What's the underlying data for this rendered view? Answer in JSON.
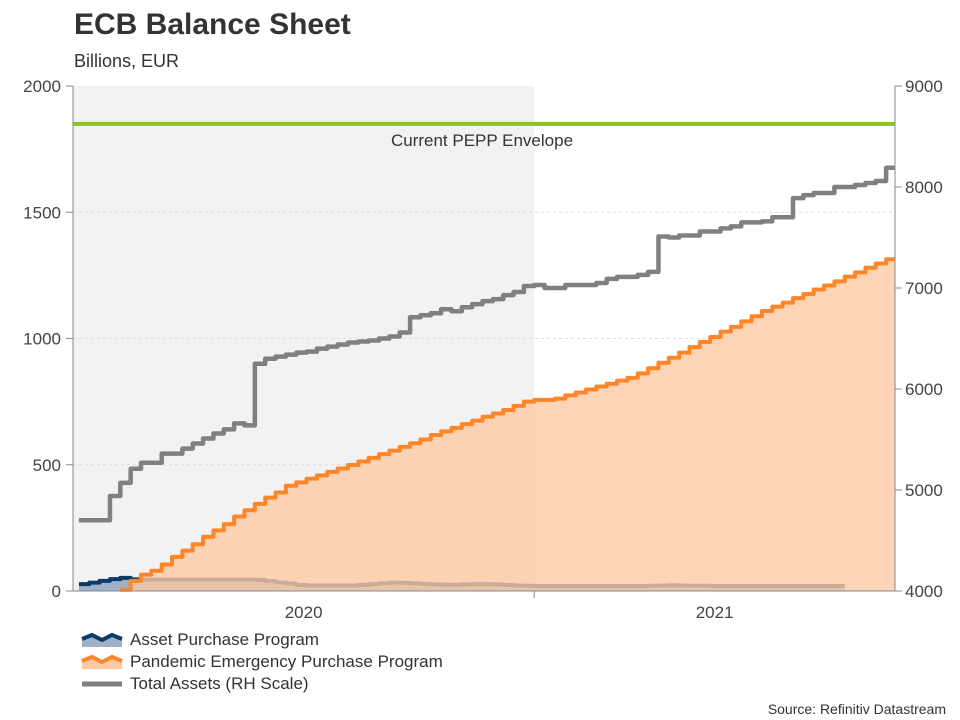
{
  "chart_data": {
    "type": "area",
    "title": "ECB Balance Sheet",
    "subtitle": "Billions, EUR",
    "source": "Source: Refinitiv Datastream",
    "x_range": [
      "2020-02-24",
      "2021-09-02"
    ],
    "x_tick_labels": [
      "2020",
      "2021"
    ],
    "x_year_boundary": "2021-01-01",
    "shaded_period": [
      "2020-02-24",
      "2021-01-01"
    ],
    "y_left": {
      "range": [
        0,
        2000
      ],
      "ticks": [
        "0",
        "500",
        "1000",
        "1500",
        "2000"
      ]
    },
    "y_right": {
      "range": [
        4000,
        9000
      ],
      "ticks": [
        "4000",
        "5000",
        "6000",
        "7000",
        "8000",
        "9000"
      ]
    },
    "grid": "horizontal dashed",
    "legend_position": "bottom-left",
    "reference_line": {
      "label": "Current PEPP Envelope",
      "value": 1850,
      "color": "#8dc21f"
    },
    "dates": [
      "2020-02-28",
      "2020-03-06",
      "2020-03-13",
      "2020-03-20",
      "2020-03-27",
      "2020-04-03",
      "2020-04-10",
      "2020-04-17",
      "2020-04-24",
      "2020-05-01",
      "2020-05-08",
      "2020-05-15",
      "2020-05-22",
      "2020-05-29",
      "2020-06-05",
      "2020-06-12",
      "2020-06-19",
      "2020-06-26",
      "2020-07-03",
      "2020-07-10",
      "2020-07-17",
      "2020-07-24",
      "2020-07-31",
      "2020-08-07",
      "2020-08-14",
      "2020-08-21",
      "2020-08-28",
      "2020-09-04",
      "2020-09-11",
      "2020-09-18",
      "2020-09-25",
      "2020-10-02",
      "2020-10-09",
      "2020-10-16",
      "2020-10-23",
      "2020-10-30",
      "2020-11-06",
      "2020-11-13",
      "2020-11-20",
      "2020-11-27",
      "2020-12-04",
      "2020-12-11",
      "2020-12-18",
      "2020-12-25",
      "2021-01-01",
      "2021-01-08",
      "2021-01-15",
      "2021-01-22",
      "2021-01-29",
      "2021-02-05",
      "2021-02-12",
      "2021-02-19",
      "2021-02-26",
      "2021-03-05",
      "2021-03-12",
      "2021-03-19",
      "2021-03-26",
      "2021-04-02",
      "2021-04-09",
      "2021-04-16",
      "2021-04-23",
      "2021-04-30",
      "2021-05-07",
      "2021-05-14",
      "2021-05-21",
      "2021-05-28",
      "2021-06-04",
      "2021-06-11",
      "2021-06-18",
      "2021-06-25",
      "2021-07-02",
      "2021-07-09",
      "2021-07-16",
      "2021-07-23",
      "2021-07-30",
      "2021-08-06",
      "2021-08-13",
      "2021-08-20",
      "2021-08-27"
    ],
    "series": [
      {
        "name": "Asset Purchase Program",
        "axis": "left",
        "line_color": "#0e3a68",
        "fill_color": "#9db1c9",
        "values": [
          27,
          33,
          40,
          47,
          52,
          46,
          45,
          45,
          45,
          45,
          45,
          45,
          45,
          45,
          45,
          45,
          45,
          44,
          39,
          34,
          29,
          24,
          22,
          22,
          22,
          22,
          22,
          24,
          27,
          30,
          33,
          32,
          30,
          28,
          26,
          25,
          25,
          26,
          27,
          27,
          26,
          24,
          22,
          21,
          20,
          20,
          20,
          20,
          20,
          20,
          20,
          20,
          20,
          20,
          20,
          21,
          22,
          23,
          22,
          21,
          21,
          20,
          20,
          20,
          20,
          20,
          20,
          20,
          20,
          20,
          20,
          20,
          20,
          20,
          20,
          null,
          null,
          null,
          null
        ]
      },
      {
        "name": "Pandemic Emergency Purchase Program",
        "axis": "left",
        "line_color": "#fd8629",
        "fill_color": "#fdc9a3",
        "values": [
          null,
          null,
          null,
          null,
          5,
          40,
          65,
          80,
          105,
          135,
          160,
          185,
          215,
          240,
          265,
          295,
          320,
          345,
          370,
          390,
          417,
          430,
          445,
          458,
          472,
          485,
          499,
          513,
          527,
          542,
          556,
          571,
          585,
          600,
          618,
          632,
          646,
          661,
          675,
          690,
          703,
          717,
          733,
          750,
          757,
          757,
          762,
          775,
          786,
          798,
          810,
          821,
          833,
          844,
          862,
          882,
          904,
          924,
          944,
          966,
          986,
          1006,
          1027,
          1046,
          1068,
          1088,
          1109,
          1126,
          1142,
          1160,
          1176,
          1194,
          1210,
          1226,
          1245,
          1262,
          1280,
          1297,
          1314
        ]
      },
      {
        "name": "Total Assets (RH Scale)",
        "axis": "right",
        "line_color": "#808080",
        "values": [
          4700,
          4700,
          4700,
          4940,
          5070,
          5210,
          5270,
          5270,
          5360,
          5360,
          5410,
          5460,
          5510,
          5560,
          5600,
          5660,
          5640,
          6250,
          6300,
          6320,
          6340,
          6360,
          6370,
          6400,
          6420,
          6440,
          6460,
          6470,
          6480,
          6500,
          6520,
          6560,
          6710,
          6730,
          6750,
          6790,
          6770,
          6810,
          6840,
          6870,
          6890,
          6930,
          6960,
          7020,
          7030,
          7000,
          7000,
          7030,
          7030,
          7030,
          7050,
          7090,
          7110,
          7110,
          7130,
          7160,
          7510,
          7500,
          7520,
          7520,
          7560,
          7560,
          7590,
          7610,
          7650,
          7650,
          7660,
          7700,
          7700,
          7890,
          7920,
          7940,
          7940,
          8000,
          8000,
          8020,
          8040,
          8060,
          8190
        ]
      }
    ]
  }
}
